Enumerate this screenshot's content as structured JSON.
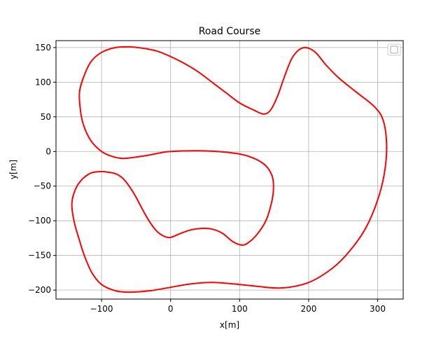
{
  "chart_data": {
    "type": "line",
    "title": "Road Course",
    "xlabel": "x[m]",
    "ylabel": "y[m]",
    "xlim": [
      -166,
      337
    ],
    "ylim": [
      -213,
      160
    ],
    "xticks": [
      -100,
      0,
      100,
      200,
      300
    ],
    "yticks": [
      -200,
      -150,
      -100,
      -50,
      0,
      50,
      100,
      150
    ],
    "xtick_labels": [
      "−100",
      "0",
      "100",
      "200",
      "300"
    ],
    "ytick_labels": [
      "−200",
      "−150",
      "−100",
      "−50",
      "0",
      "50",
      "100",
      "150"
    ],
    "grid": true,
    "legend": "top-right (empty)",
    "series_color": "#ff0000",
    "series": [
      {
        "closed": true,
        "points": [
          [
            0,
            0
          ],
          [
            40,
            1
          ],
          [
            80,
            -1
          ],
          [
            110,
            -6
          ],
          [
            135,
            -18
          ],
          [
            147,
            -35
          ],
          [
            149,
            -55
          ],
          [
            146,
            -75
          ],
          [
            138,
            -100
          ],
          [
            125,
            -120
          ],
          [
            112,
            -132
          ],
          [
            103,
            -135
          ],
          [
            90,
            -130
          ],
          [
            75,
            -118
          ],
          [
            60,
            -112
          ],
          [
            45,
            -111
          ],
          [
            30,
            -113
          ],
          [
            15,
            -118
          ],
          [
            0,
            -124
          ],
          [
            -10,
            -122
          ],
          [
            -20,
            -115
          ],
          [
            -30,
            -102
          ],
          [
            -40,
            -85
          ],
          [
            -50,
            -66
          ],
          [
            -60,
            -50
          ],
          [
            -70,
            -38
          ],
          [
            -80,
            -32
          ],
          [
            -90,
            -30
          ],
          [
            -100,
            -29
          ],
          [
            -115,
            -31
          ],
          [
            -128,
            -40
          ],
          [
            -138,
            -55
          ],
          [
            -143,
            -75
          ],
          [
            -140,
            -100
          ],
          [
            -133,
            -125
          ],
          [
            -125,
            -150
          ],
          [
            -114,
            -175
          ],
          [
            -100,
            -192
          ],
          [
            -80,
            -201
          ],
          [
            -60,
            -203
          ],
          [
            -30,
            -201
          ],
          [
            0,
            -196
          ],
          [
            30,
            -191
          ],
          [
            60,
            -189
          ],
          [
            90,
            -191
          ],
          [
            120,
            -194
          ],
          [
            160,
            -197
          ],
          [
            200,
            -189
          ],
          [
            235,
            -168
          ],
          [
            260,
            -143
          ],
          [
            283,
            -110
          ],
          [
            300,
            -70
          ],
          [
            310,
            -30
          ],
          [
            313,
            10
          ],
          [
            308,
            45
          ],
          [
            295,
            65
          ],
          [
            270,
            85
          ],
          [
            245,
            105
          ],
          [
            225,
            125
          ],
          [
            210,
            143
          ],
          [
            196,
            150
          ],
          [
            185,
            146
          ],
          [
            175,
            133
          ],
          [
            165,
            108
          ],
          [
            155,
            80
          ],
          [
            145,
            60
          ],
          [
            135,
            54
          ],
          [
            120,
            60
          ],
          [
            100,
            70
          ],
          [
            80,
            85
          ],
          [
            60,
            100
          ],
          [
            40,
            115
          ],
          [
            20,
            127
          ],
          [
            0,
            137
          ],
          [
            -20,
            145
          ],
          [
            -40,
            149
          ],
          [
            -60,
            151
          ],
          [
            -80,
            150
          ],
          [
            -100,
            143
          ],
          [
            -115,
            130
          ],
          [
            -125,
            110
          ],
          [
            -132,
            85
          ],
          [
            -130,
            55
          ],
          [
            -125,
            35
          ],
          [
            -115,
            15
          ],
          [
            -100,
            0
          ],
          [
            -85,
            -7
          ],
          [
            -70,
            -10
          ],
          [
            -50,
            -8
          ],
          [
            -30,
            -5
          ],
          [
            -15,
            -2
          ],
          [
            0,
            0
          ]
        ]
      }
    ]
  }
}
